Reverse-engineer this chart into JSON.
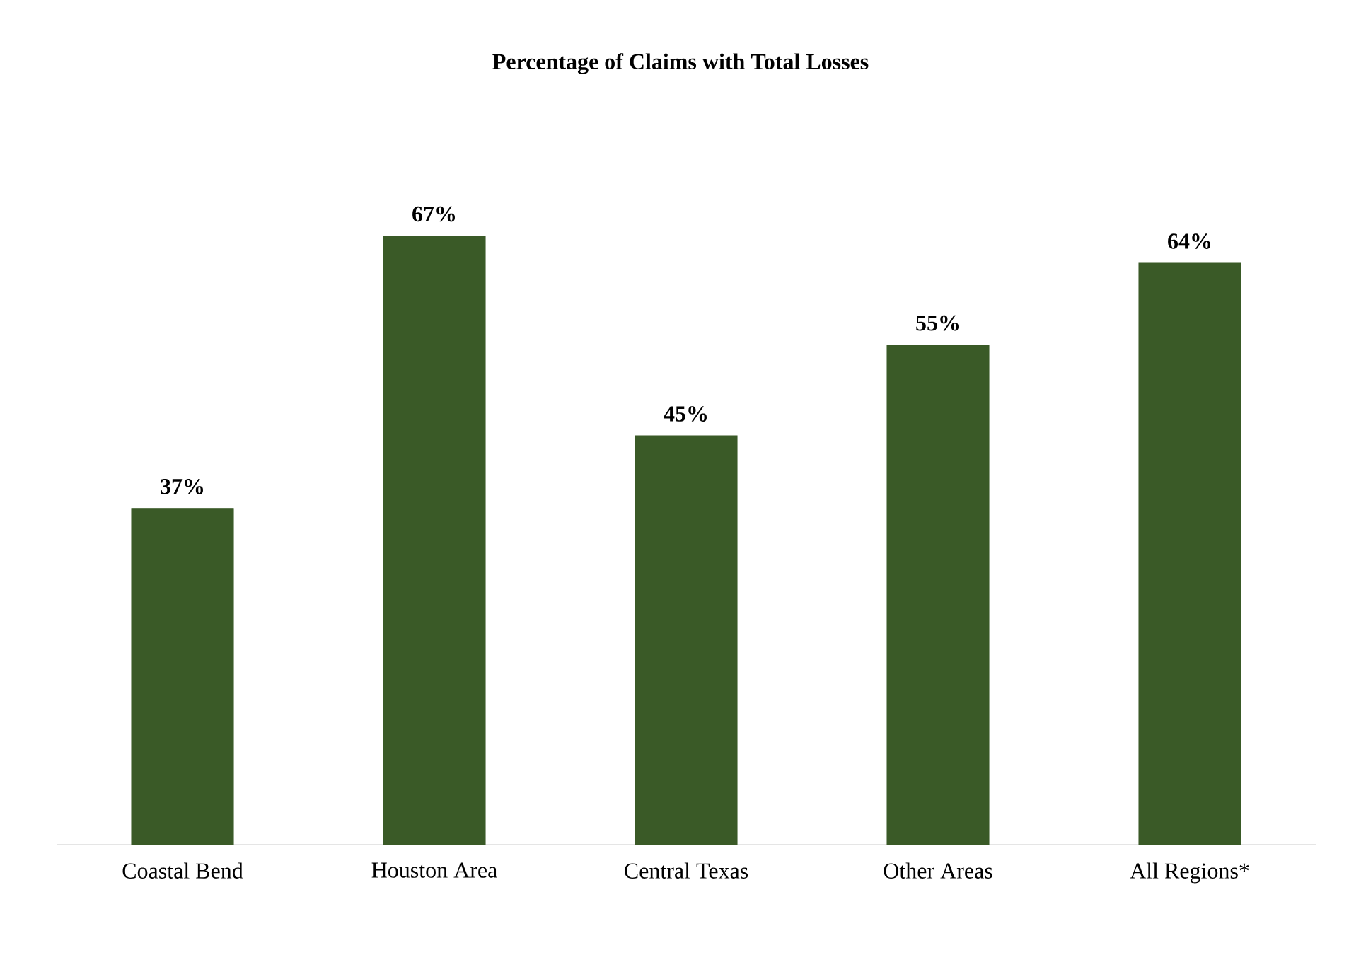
{
  "chart_data": {
    "type": "bar",
    "title": "Percentage of Claims with Total Losses",
    "categories": [
      "Coastal Bend",
      "Houston Area",
      "Central Texas",
      "Other Areas",
      "All Regions*"
    ],
    "values": [
      37,
      67,
      45,
      55,
      64
    ],
    "value_labels": [
      "37%",
      "67%",
      "45%",
      "55%",
      "64%"
    ],
    "color": "#3a5a27"
  }
}
